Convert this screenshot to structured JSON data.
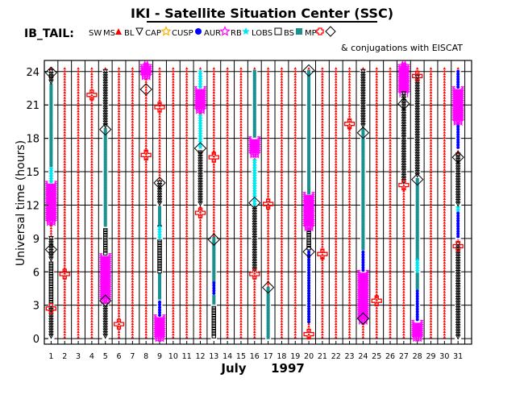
{
  "chart_data": {
    "type": "scatter",
    "title": "IKI - Satellite Situation Center (SSC)",
    "subtitle": "IB_TAIL:",
    "xlabel_month": "July",
    "xlabel_year": "1997",
    "ylabel": "Universal time (hours)",
    "xlim": [
      0.5,
      32
    ],
    "ylim": [
      -0.5,
      25
    ],
    "x_ticks": [
      1,
      2,
      3,
      4,
      5,
      6,
      7,
      8,
      9,
      10,
      11,
      12,
      13,
      14,
      15,
      16,
      17,
      18,
      19,
      20,
      21,
      22,
      23,
      24,
      25,
      26,
      27,
      28,
      29,
      30,
      31
    ],
    "y_ticks": [
      0,
      3,
      6,
      9,
      12,
      15,
      18,
      21,
      24
    ],
    "grid": true,
    "legend_position": "top",
    "legend": [
      {
        "key": "SW",
        "label": "SW",
        "color": "#ff0000",
        "marker": "none"
      },
      {
        "key": "MS",
        "label": "MS",
        "color": "#ff0000",
        "marker": "triangle-filled"
      },
      {
        "key": "BL",
        "label": "BL",
        "color": "#000000",
        "marker": "triangle-open"
      },
      {
        "key": "CAP",
        "label": "CAP",
        "color": "#ffb000",
        "marker": "star-open"
      },
      {
        "key": "CUSP",
        "label": "CUSP",
        "color": "#0000ff",
        "marker": "circle-filled"
      },
      {
        "key": "AUR",
        "label": "AUR",
        "color": "#ff00ff",
        "marker": "star-open"
      },
      {
        "key": "RB",
        "label": "RB",
        "color": "#00e5ee",
        "marker": "star-filled"
      },
      {
        "key": "LOBS",
        "label": "LOBS",
        "color": "#000000",
        "marker": "square-open"
      },
      {
        "key": "BS",
        "label": "BS",
        "color": "#1a9090",
        "marker": "square-filled"
      },
      {
        "key": "MP",
        "label": "MP",
        "color": "#ff0000",
        "marker": "cross-open"
      },
      {
        "key": "CONJ",
        "label": "",
        "color": "#000000",
        "marker": "diamond-open"
      }
    ],
    "conjugation_note": "& conjugations with EISCAT",
    "tail_segments": [
      {
        "day": 1,
        "segments": [
          [
            "BL",
            0,
            3
          ],
          [
            "LOBS",
            3,
            7
          ],
          [
            "BL",
            7,
            9
          ],
          [
            "AUR",
            10.5,
            14
          ],
          [
            "RB",
            14,
            15.5
          ],
          [
            "BS",
            15.5,
            23
          ],
          [
            "BL",
            23,
            24
          ]
        ]
      },
      {
        "day": 5,
        "segments": [
          [
            "BL",
            0,
            3
          ],
          [
            "AUR",
            3.5,
            7.5
          ],
          [
            "LOBS",
            7.5,
            10
          ],
          [
            "BS",
            10,
            19
          ],
          [
            "BL",
            19,
            24
          ]
        ]
      },
      {
        "day": 8,
        "segments": [
          [
            "AUR",
            23.5,
            24.5
          ]
        ]
      },
      {
        "day": 9,
        "segments": [
          [
            "AUR",
            0,
            2
          ],
          [
            "CUSP",
            2,
            3.5
          ],
          [
            "BS",
            3.5,
            12
          ],
          [
            "LOBS",
            6,
            10
          ],
          [
            "BL",
            12,
            14
          ],
          [
            "RB",
            9,
            10
          ]
        ]
      },
      {
        "day": 12,
        "segments": [
          [
            "BL",
            12,
            17
          ],
          [
            "RB",
            17,
            20
          ],
          [
            "AUR",
            20.5,
            22.5
          ],
          [
            "RB",
            22.5,
            24
          ]
        ]
      },
      {
        "day": 13,
        "segments": [
          [
            "LOBS",
            0,
            3
          ],
          [
            "BS",
            3,
            9
          ],
          [
            "CUSP",
            4,
            5
          ]
        ]
      },
      {
        "day": 16,
        "segments": [
          [
            "BL",
            6,
            12
          ],
          [
            "RB",
            12,
            16
          ],
          [
            "AUR",
            16.5,
            18
          ],
          [
            "BS",
            18,
            24
          ]
        ]
      },
      {
        "day": 17,
        "segments": [
          [
            "BS",
            0,
            4.5
          ]
        ]
      },
      {
        "day": 20,
        "segments": [
          [
            "CUSP",
            1.5,
            8
          ],
          [
            "LOBS",
            8,
            10
          ],
          [
            "AUR",
            10,
            13
          ],
          [
            "BS",
            13,
            24
          ]
        ]
      },
      {
        "day": 24,
        "segments": [
          [
            "AUR",
            1.5,
            6
          ],
          [
            "CUSP",
            6,
            8
          ],
          [
            "BS",
            8,
            19
          ],
          [
            "BL",
            19,
            24
          ]
        ]
      },
      {
        "day": 27,
        "segments": [
          [
            "AUR",
            22,
            24.5
          ],
          [
            "BL",
            14,
            22
          ]
        ]
      },
      {
        "day": 28,
        "segments": [
          [
            "AUR",
            0,
            1.5
          ],
          [
            "CUSP",
            1.5,
            4.5
          ],
          [
            "BS",
            4.5,
            14.5
          ],
          [
            "RB",
            6,
            7
          ],
          [
            "BL",
            14.5,
            23.5
          ]
        ]
      },
      {
        "day": 31,
        "segments": [
          [
            "BL",
            0,
            8.5
          ],
          [
            "CUSP",
            9,
            11.5
          ],
          [
            "RB",
            11.5,
            12
          ],
          [
            "BL",
            12,
            16.5
          ],
          [
            "CUSP",
            17,
            19.5
          ],
          [
            "AUR",
            19.5,
            22.5
          ],
          [
            "CUSP",
            22.5,
            24
          ]
        ]
      }
    ],
    "mp_crossings": [
      {
        "day": 1,
        "hour": 2.7
      },
      {
        "day": 2,
        "hour": 5.8
      },
      {
        "day": 4,
        "hour": 21.9
      },
      {
        "day": 6,
        "hour": 1.3
      },
      {
        "day": 8,
        "hour": 16.5
      },
      {
        "day": 9,
        "hour": 20.8
      },
      {
        "day": 12,
        "hour": 11.3
      },
      {
        "day": 13,
        "hour": 16.3
      },
      {
        "day": 16,
        "hour": 5.8
      },
      {
        "day": 17,
        "hour": 12.1
      },
      {
        "day": 20,
        "hour": 0.4
      },
      {
        "day": 21,
        "hour": 7.6
      },
      {
        "day": 23,
        "hour": 19.3
      },
      {
        "day": 25,
        "hour": 3.4
      },
      {
        "day": 27,
        "hour": 13.8
      },
      {
        "day": 28,
        "hour": 23.6
      },
      {
        "day": 31,
        "hour": 8.3
      }
    ],
    "conjugations": [
      {
        "day": 1,
        "hour": 8.0
      },
      {
        "day": 1,
        "hour": 23.9
      },
      {
        "day": 5,
        "hour": 3.4
      },
      {
        "day": 5,
        "hour": 18.8
      },
      {
        "day": 8,
        "hour": 22.4
      },
      {
        "day": 9,
        "hour": 14.0
      },
      {
        "day": 12,
        "hour": 17.1
      },
      {
        "day": 13,
        "hour": 8.9
      },
      {
        "day": 16,
        "hour": 12.2
      },
      {
        "day": 17,
        "hour": 4.6
      },
      {
        "day": 20,
        "hour": 7.8
      },
      {
        "day": 20,
        "hour": 24.1
      },
      {
        "day": 24,
        "hour": 1.8
      },
      {
        "day": 24,
        "hour": 18.5
      },
      {
        "day": 27,
        "hour": 21.1
      },
      {
        "day": 28,
        "hour": 14.3
      },
      {
        "day": 31,
        "hour": 16.3
      }
    ]
  }
}
